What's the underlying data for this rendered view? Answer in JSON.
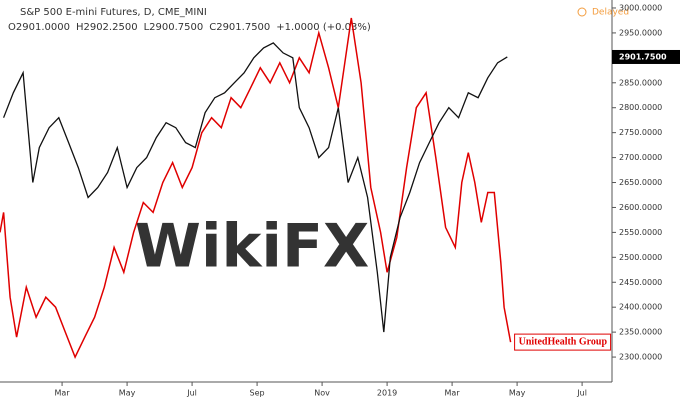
{
  "chart_data": {
    "type": "line",
    "title": "S&P 500 E-mini Futures, D, CME_MINI",
    "ohlc": [
      "O2901.0000",
      "H2902.2500",
      "L2900.7500",
      "C2901.7500",
      "+1.0000 (+0.03%)"
    ],
    "status": "Delayed",
    "watermark": "WikiFX",
    "series_label": "UnitedHealth Group",
    "last_price": {
      "value": 2901.75,
      "label": "2901.7500"
    },
    "xlim": [
      0.09,
      18.92
    ],
    "xticks": [
      {
        "value": 2,
        "label": "Mar"
      },
      {
        "value": 4,
        "label": "May"
      },
      {
        "value": 6,
        "label": "Jul"
      },
      {
        "value": 8,
        "label": "Sep"
      },
      {
        "value": 10,
        "label": "Nov"
      },
      {
        "value": 12,
        "label": "2019"
      },
      {
        "value": 14,
        "label": "Mar"
      },
      {
        "value": 16,
        "label": "May"
      },
      {
        "value": 18,
        "label": "Jul"
      }
    ],
    "ylim": [
      2250,
      3016
    ],
    "yticks": [
      {
        "value": 2300,
        "label": "2300.0000"
      },
      {
        "value": 2350,
        "label": "2350.0000"
      },
      {
        "value": 2400,
        "label": "2400.0000"
      },
      {
        "value": 2450,
        "label": "2450.0000"
      },
      {
        "value": 2500,
        "label": "2500.0000"
      },
      {
        "value": 2550,
        "label": "2550.0000"
      },
      {
        "value": 2600,
        "label": "2600.0000"
      },
      {
        "value": 2650,
        "label": "2650.0000"
      },
      {
        "value": 2700,
        "label": "2700.0000"
      },
      {
        "value": 2750,
        "label": "2750.0000"
      },
      {
        "value": 2800,
        "label": "2800.0000"
      },
      {
        "value": 2850,
        "label": "2850.0000"
      },
      {
        "value": 2900,
        "label": "2900.0000"
      },
      {
        "value": 2950,
        "label": "2950.0000"
      },
      {
        "value": 3000,
        "label": "3000.0000"
      }
    ],
    "series": [
      {
        "color": "#111111",
        "x": [
          0.2,
          0.5,
          0.8,
          1.1,
          1.3,
          1.6,
          1.9,
          2.2,
          2.5,
          2.8,
          3.1,
          3.4,
          3.7,
          4.0,
          4.3,
          4.6,
          4.9,
          5.2,
          5.5,
          5.8,
          6.1,
          6.4,
          6.7,
          7.0,
          7.3,
          7.6,
          7.9,
          8.2,
          8.5,
          8.8,
          9.1,
          9.3,
          9.6,
          9.9,
          10.2,
          10.5,
          10.8,
          11.1,
          11.4,
          11.7,
          11.9,
          12.1,
          12.4,
          12.7,
          13.0,
          13.3,
          13.6,
          13.9,
          14.2,
          14.5,
          14.8,
          15.1,
          15.4,
          15.7
        ],
        "values": [
          2780,
          2830,
          2870,
          2650,
          2720,
          2760,
          2780,
          2730,
          2680,
          2620,
          2640,
          2670,
          2720,
          2640,
          2680,
          2700,
          2740,
          2770,
          2760,
          2730,
          2720,
          2790,
          2820,
          2830,
          2850,
          2870,
          2900,
          2920,
          2930,
          2910,
          2900,
          2800,
          2760,
          2700,
          2720,
          2800,
          2650,
          2700,
          2620,
          2470,
          2350,
          2500,
          2580,
          2630,
          2690,
          2730,
          2770,
          2800,
          2780,
          2830,
          2820,
          2860,
          2890,
          2902
        ]
      },
      {
        "color": "#e00000",
        "x": [
          0.09,
          0.2,
          0.4,
          0.6,
          0.9,
          1.2,
          1.5,
          1.8,
          2.1,
          2.4,
          2.7,
          3.0,
          3.3,
          3.6,
          3.9,
          4.2,
          4.5,
          4.8,
          5.1,
          5.4,
          5.7,
          6.0,
          6.3,
          6.6,
          6.9,
          7.2,
          7.5,
          7.8,
          8.1,
          8.4,
          8.7,
          9.0,
          9.3,
          9.6,
          9.9,
          10.2,
          10.5,
          10.7,
          10.9,
          11.2,
          11.5,
          11.8,
          12.0,
          12.3,
          12.6,
          12.9,
          13.2,
          13.5,
          13.8,
          14.1,
          14.3,
          14.5,
          14.7,
          14.9,
          15.1,
          15.3,
          15.5,
          15.6,
          15.8
        ],
        "values": [
          2550,
          2590,
          2420,
          2340,
          2440,
          2380,
          2420,
          2400,
          2350,
          2300,
          2340,
          2380,
          2440,
          2520,
          2470,
          2550,
          2610,
          2590,
          2650,
          2690,
          2640,
          2680,
          2750,
          2780,
          2760,
          2820,
          2800,
          2840,
          2880,
          2850,
          2890,
          2850,
          2900,
          2870,
          2950,
          2880,
          2800,
          2890,
          2980,
          2850,
          2640,
          2550,
          2470,
          2540,
          2680,
          2800,
          2830,
          2700,
          2560,
          2520,
          2650,
          2710,
          2650,
          2570,
          2630,
          2630,
          2490,
          2400,
          2330
        ]
      }
    ]
  }
}
